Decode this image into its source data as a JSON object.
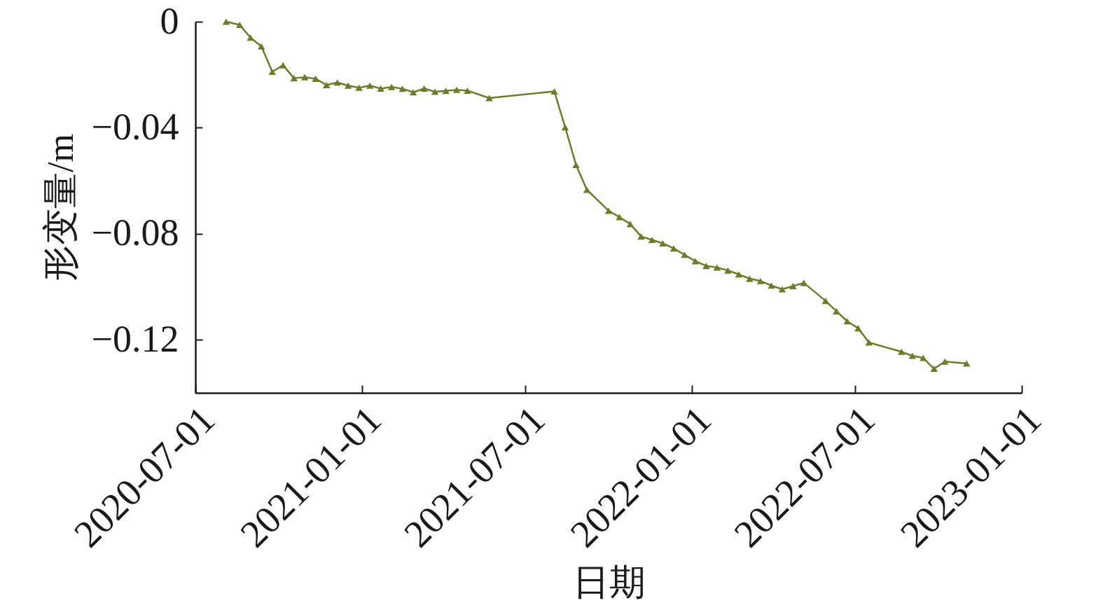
{
  "chart_data": {
    "type": "line",
    "xlabel": "日期",
    "ylabel": "形变量/m",
    "x": [
      "2020-08-04",
      "2020-08-19",
      "2020-08-31",
      "2020-09-12",
      "2020-09-24",
      "2020-10-06",
      "2020-10-18",
      "2020-10-30",
      "2020-11-11",
      "2020-11-23",
      "2020-12-05",
      "2020-12-17",
      "2020-12-29",
      "2021-01-10",
      "2021-01-22",
      "2021-02-03",
      "2021-02-15",
      "2021-02-27",
      "2021-03-11",
      "2021-03-23",
      "2021-04-04",
      "2021-04-16",
      "2021-04-28",
      "2021-05-22",
      "2021-08-02",
      "2021-08-14",
      "2021-08-26",
      "2021-09-07",
      "2021-10-01",
      "2021-10-13",
      "2021-10-25",
      "2021-11-06",
      "2021-11-18",
      "2021-11-30",
      "2021-12-12",
      "2021-12-24",
      "2022-01-05",
      "2022-01-17",
      "2022-01-29",
      "2022-02-10",
      "2022-02-22",
      "2022-03-06",
      "2022-03-18",
      "2022-03-30",
      "2022-04-11",
      "2022-04-23",
      "2022-05-05",
      "2022-05-29",
      "2022-06-10",
      "2022-06-22",
      "2022-07-04",
      "2022-07-16",
      "2022-08-21",
      "2022-09-02",
      "2022-09-14",
      "2022-09-26",
      "2022-10-08",
      "2022-11-01"
    ],
    "series": [
      {
        "color": "#6e7b2b",
        "values": [
          0,
          -0.0012,
          -0.006,
          -0.0093,
          -0.0189,
          -0.0164,
          -0.0213,
          -0.0209,
          -0.0215,
          -0.0239,
          -0.0229,
          -0.0241,
          -0.0249,
          -0.0241,
          -0.0252,
          -0.0246,
          -0.0253,
          -0.0266,
          -0.0252,
          -0.0264,
          -0.0261,
          -0.0257,
          -0.026,
          -0.0288,
          -0.0263,
          -0.0398,
          -0.054,
          -0.0634,
          -0.0713,
          -0.0737,
          -0.0763,
          -0.081,
          -0.0823,
          -0.0836,
          -0.0855,
          -0.0879,
          -0.0903,
          -0.0921,
          -0.0927,
          -0.0938,
          -0.0953,
          -0.0969,
          -0.0978,
          -0.0995,
          -0.1009,
          -0.0997,
          -0.0985,
          -0.1053,
          -0.1092,
          -0.113,
          -0.1156,
          -0.121,
          -0.1245,
          -0.126,
          -0.1268,
          -0.1309,
          -0.1282,
          -0.1289
        ]
      }
    ],
    "xlim": [
      "2020-07-01",
      "2023-01-01"
    ],
    "xticks": [
      "2020-07-01",
      "2021-01-01",
      "2021-07-01",
      "2022-01-01",
      "2022-07-01",
      "2023-01-01"
    ],
    "ylim": [
      -0.14,
      0
    ],
    "yticks": [
      0,
      -0.04,
      -0.08,
      -0.12
    ],
    "marker": "triangle",
    "line_style": "solid"
  }
}
